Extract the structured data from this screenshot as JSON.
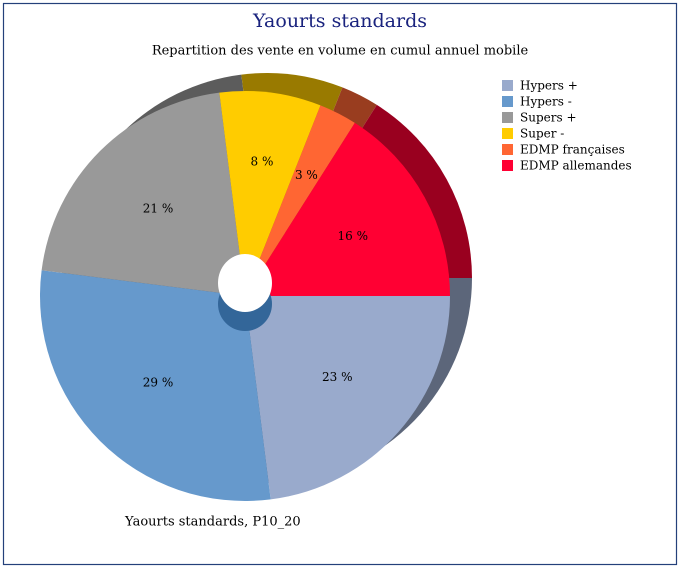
{
  "chart_data": {
    "type": "donut",
    "title": "Yaourts standards",
    "subtitle": "Repartition des vente en volume en cumul annuel mobile",
    "caption": "Yaourts standards, P10_20",
    "categories": [
      "Hypers +",
      "Hypers -",
      "Supers +",
      "Super -",
      "EDMP françaises",
      "EDMP allemandes"
    ],
    "values": [
      23,
      29,
      21,
      8,
      3,
      16
    ],
    "value_labels": [
      "23 %",
      "29 %",
      "21 %",
      "8 %",
      "3 %",
      "16 %"
    ],
    "colors": [
      "#99aacc",
      "#6699cc",
      "#999999",
      "#ffcc00",
      "#ff6633",
      "#ff0033"
    ],
    "legend": "top-right"
  }
}
